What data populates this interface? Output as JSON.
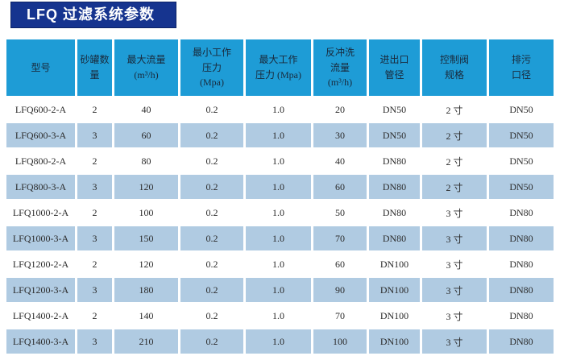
{
  "title": {
    "text": "LFQ 过滤系统参数"
  },
  "colors": {
    "title_bg": "#16348f",
    "title_text": "#ffffff",
    "header_bg": "#1e9cd6",
    "stripe_bg": "#b0cbe2",
    "row_bg": "#ffffff",
    "cell_text": "#2b2b2b"
  },
  "table": {
    "columns": [
      {
        "key": "model",
        "label": "型号"
      },
      {
        "key": "tank-count",
        "label": "砂罐数\n量"
      },
      {
        "key": "max-flow",
        "label": "最大流量\n(m³/h)"
      },
      {
        "key": "min-pressure",
        "label": "最小工作\n压力\n(Mpa)"
      },
      {
        "key": "max-pressure",
        "label": "最大工作\n压力 (Mpa)"
      },
      {
        "key": "backwash-flow",
        "label": "反冲洗\n流量\n(m³/h)"
      },
      {
        "key": "pipe-diameter",
        "label": "进出口\n管径"
      },
      {
        "key": "valve-spec",
        "label": "控制阀\n规格"
      },
      {
        "key": "drain-diameter",
        "label": "排污\n口径"
      }
    ],
    "rows": [
      [
        "LFQ600-2-A",
        "2",
        "40",
        "0.2",
        "1.0",
        "20",
        "DN50",
        "2 寸",
        "DN50"
      ],
      [
        "LFQ600-3-A",
        "3",
        "60",
        "0.2",
        "1.0",
        "30",
        "DN50",
        "2 寸",
        "DN50"
      ],
      [
        "LFQ800-2-A",
        "2",
        "80",
        "0.2",
        "1.0",
        "40",
        "DN80",
        "2 寸",
        "DN50"
      ],
      [
        "LFQ800-3-A",
        "3",
        "120",
        "0.2",
        "1.0",
        "60",
        "DN80",
        "2 寸",
        "DN50"
      ],
      [
        "LFQ1000-2-A",
        "2",
        "100",
        "0.2",
        "1.0",
        "50",
        "DN80",
        "3 寸",
        "DN80"
      ],
      [
        "LFQ1000-3-A",
        "3",
        "150",
        "0.2",
        "1.0",
        "70",
        "DN80",
        "3 寸",
        "DN80"
      ],
      [
        "LFQ1200-2-A",
        "2",
        "120",
        "0.2",
        "1.0",
        "60",
        "DN100",
        "3 寸",
        "DN80"
      ],
      [
        "LFQ1200-3-A",
        "3",
        "180",
        "0.2",
        "1.0",
        "90",
        "DN100",
        "3 寸",
        "DN80"
      ],
      [
        "LFQ1400-2-A",
        "2",
        "140",
        "0.2",
        "1.0",
        "70",
        "DN100",
        "3 寸",
        "DN80"
      ],
      [
        "LFQ1400-3-A",
        "3",
        "210",
        "0.2",
        "1.0",
        "100",
        "DN100",
        "3 寸",
        "DN80"
      ]
    ]
  }
}
